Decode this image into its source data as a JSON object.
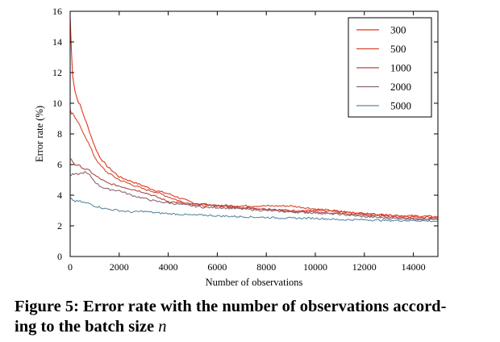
{
  "chart_data": {
    "type": "line",
    "xlabel": "Number of observations",
    "ylabel": "Error rate (%)",
    "xlim": [
      0,
      15000
    ],
    "ylim": [
      0,
      16
    ],
    "xticks": [
      0,
      2000,
      4000,
      6000,
      8000,
      10000,
      12000,
      14000
    ],
    "yticks": [
      0,
      2,
      4,
      6,
      8,
      10,
      12,
      14,
      16
    ],
    "grid": false,
    "legend_position": "top-right",
    "series": [
      {
        "name": "300",
        "color": "#e8331f",
        "x": [
          0,
          50,
          100,
          200,
          300,
          400,
          600,
          800,
          1000,
          1200,
          1500,
          2000,
          2500,
          3000,
          3500,
          4000,
          4500,
          5000,
          5500,
          6000,
          7000,
          8000,
          9000,
          10000,
          11000,
          12000,
          13000,
          14000,
          15000
        ],
        "y": [
          15.6,
          13.5,
          11.8,
          10.8,
          10.2,
          9.9,
          9.0,
          8.1,
          7.2,
          6.5,
          5.9,
          5.2,
          4.9,
          4.6,
          4.3,
          4.1,
          3.8,
          3.5,
          3.4,
          3.3,
          3.2,
          3.1,
          3.0,
          3.0,
          2.9,
          2.8,
          2.7,
          2.6,
          2.55
        ]
      },
      {
        "name": "500",
        "color": "#d9482e",
        "x": [
          0,
          50,
          100,
          200,
          300,
          400,
          600,
          800,
          1000,
          1200,
          1500,
          2000,
          2500,
          3000,
          3500,
          4000,
          4500,
          5000,
          5500,
          6000,
          7000,
          8000,
          9000,
          10000,
          11000,
          12000,
          13000,
          14000,
          15000
        ],
        "y": [
          9.6,
          9.3,
          9.4,
          9.0,
          8.8,
          8.5,
          7.9,
          7.2,
          6.5,
          6.0,
          5.5,
          5.0,
          4.7,
          4.4,
          4.2,
          3.9,
          3.6,
          3.4,
          3.3,
          3.35,
          3.3,
          3.3,
          3.3,
          3.1,
          2.95,
          2.8,
          2.7,
          2.65,
          2.6
        ]
      },
      {
        "name": "1000",
        "color": "#b04848",
        "x": [
          0,
          100,
          200,
          400,
          600,
          800,
          1000,
          1200,
          1500,
          2000,
          2500,
          3000,
          3500,
          4000,
          4500,
          5000,
          5500,
          6000,
          7000,
          8000,
          9000,
          10000,
          11000,
          12000,
          13000,
          14000,
          15000
        ],
        "y": [
          6.4,
          6.2,
          6.0,
          5.9,
          5.7,
          5.6,
          5.3,
          5.1,
          4.8,
          4.6,
          4.4,
          4.2,
          3.9,
          3.6,
          3.5,
          3.4,
          3.4,
          3.3,
          3.2,
          3.1,
          2.95,
          2.9,
          2.8,
          2.7,
          2.6,
          2.5,
          2.45
        ]
      },
      {
        "name": "2000",
        "color": "#8a6670",
        "x": [
          0,
          100,
          200,
          400,
          600,
          800,
          1000,
          1200,
          1500,
          2000,
          2500,
          3000,
          3500,
          4000,
          4500,
          5000,
          5500,
          6000,
          7000,
          8000,
          9000,
          10000,
          11000,
          12000,
          13000,
          14000,
          15000
        ],
        "y": [
          5.3,
          5.35,
          5.35,
          5.4,
          5.5,
          5.3,
          4.9,
          4.6,
          4.4,
          4.3,
          4.0,
          3.8,
          3.6,
          3.5,
          3.4,
          3.3,
          3.2,
          3.2,
          3.1,
          3.0,
          2.9,
          2.85,
          2.75,
          2.6,
          2.5,
          2.45,
          2.4
        ]
      },
      {
        "name": "5000",
        "color": "#5b8aa3",
        "x": [
          0,
          100,
          200,
          400,
          600,
          800,
          1000,
          1500,
          2000,
          2500,
          3000,
          3500,
          4000,
          4500,
          5000,
          5500,
          6000,
          7000,
          8000,
          9000,
          10000,
          11000,
          12000,
          13000,
          14000,
          15000
        ],
        "y": [
          3.8,
          3.7,
          3.6,
          3.6,
          3.5,
          3.45,
          3.3,
          3.1,
          3.0,
          2.9,
          2.95,
          2.85,
          2.8,
          2.75,
          2.7,
          2.7,
          2.65,
          2.6,
          2.55,
          2.5,
          2.5,
          2.4,
          2.4,
          2.35,
          2.35,
          2.3
        ]
      }
    ]
  },
  "caption": {
    "line1": "Figure 5: Error rate with the number of observations accord-",
    "line2_text": "ing to the batch size ",
    "line2_math": "n"
  }
}
